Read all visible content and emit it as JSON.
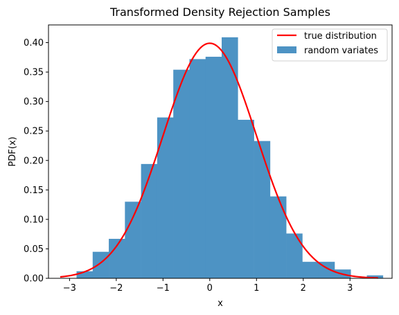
{
  "chart_data": {
    "type": "bar",
    "title": "Transformed Density Rejection Samples",
    "xlabel": "x",
    "ylabel": "PDF(x)",
    "xlim": [
      -3.45,
      3.9
    ],
    "ylim": [
      0.0,
      0.43
    ],
    "xticks": [
      -3,
      -2,
      -1,
      0,
      1,
      2,
      3
    ],
    "xtick_labels": [
      "−3",
      "−2",
      "−1",
      "0",
      "1",
      "2",
      "3"
    ],
    "yticks": [
      0.0,
      0.05,
      0.1,
      0.15,
      0.2,
      0.25,
      0.3,
      0.35,
      0.4
    ],
    "ytick_labels": [
      "0.00",
      "0.05",
      "0.10",
      "0.15",
      "0.20",
      "0.25",
      "0.30",
      "0.35",
      "0.40"
    ],
    "grid": false,
    "legend_position": "top-right",
    "series": [
      {
        "name": "random variates",
        "type": "histogram",
        "color": "#4d93c4",
        "bin_edges": [
          -2.85,
          -2.505,
          -2.16,
          -1.815,
          -1.47,
          -1.125,
          -0.78,
          -0.435,
          -0.09,
          0.255,
          0.6,
          0.945,
          1.29,
          1.635,
          1.98,
          2.325,
          2.67,
          3.015,
          3.36,
          3.705
        ],
        "values": [
          0.012,
          0.045,
          0.067,
          0.13,
          0.194,
          0.273,
          0.354,
          0.372,
          0.376,
          0.409,
          0.269,
          0.233,
          0.139,
          0.076,
          0.028,
          0.028,
          0.015,
          0.0,
          0.005
        ]
      },
      {
        "name": "true distribution",
        "type": "line",
        "color": "#ff0000",
        "function": "normal_pdf",
        "x_range": [
          -3.2,
          3.6
        ]
      }
    ]
  }
}
